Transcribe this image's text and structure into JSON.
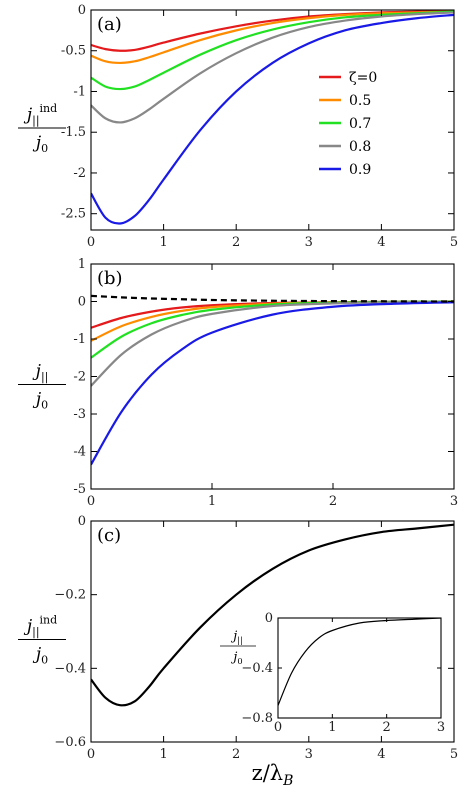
{
  "chart_data": [
    {
      "type": "line",
      "panel_label": "(a)",
      "ylabel": {
        "main": "j",
        "sub": "||",
        "sup": "ind",
        "den": "j",
        "den_sub": "0"
      },
      "xlim": [
        0,
        5
      ],
      "ylim": [
        -2.7,
        0
      ],
      "xticks": [
        "0",
        "1",
        "2",
        "3",
        "4",
        "5"
      ],
      "yticks": [
        {
          "v": 0,
          "label": "0"
        },
        {
          "v": -0.5,
          "label": "-0.5"
        },
        {
          "v": -1,
          "label": "-1"
        },
        {
          "v": -1.5,
          "label": "-1.5"
        },
        {
          "v": -2,
          "label": "-2"
        },
        {
          "v": -2.5,
          "label": "-2.5"
        }
      ],
      "legend": {
        "title_prefix": "ζ=",
        "entries": [
          "0",
          "0.5",
          "0.7",
          "0.8",
          "0.9"
        ]
      },
      "series": [
        {
          "name": "ζ=0",
          "color": "#e41a1c",
          "x": [
            0,
            0.2,
            0.4,
            0.6,
            0.8,
            1,
            1.5,
            2,
            2.5,
            3,
            3.5,
            4,
            4.5,
            5
          ],
          "y": [
            -0.43,
            -0.48,
            -0.5,
            -0.49,
            -0.45,
            -0.4,
            -0.29,
            -0.2,
            -0.13,
            -0.08,
            -0.05,
            -0.03,
            -0.02,
            -0.01
          ]
        },
        {
          "name": "0.5",
          "color": "#ff8c00",
          "x": [
            0,
            0.2,
            0.4,
            0.6,
            0.8,
            1,
            1.5,
            2,
            2.5,
            3,
            3.5,
            4,
            4.5,
            5
          ],
          "y": [
            -0.56,
            -0.63,
            -0.65,
            -0.63,
            -0.58,
            -0.52,
            -0.37,
            -0.25,
            -0.16,
            -0.1,
            -0.06,
            -0.04,
            -0.03,
            -0.02
          ]
        },
        {
          "name": "0.7",
          "color": "#22e022",
          "x": [
            0,
            0.2,
            0.4,
            0.6,
            0.8,
            1,
            1.5,
            2,
            2.5,
            3,
            3.5,
            4,
            4.5,
            5
          ],
          "y": [
            -0.83,
            -0.94,
            -0.97,
            -0.94,
            -0.86,
            -0.77,
            -0.55,
            -0.37,
            -0.24,
            -0.15,
            -0.09,
            -0.06,
            -0.04,
            -0.02
          ]
        },
        {
          "name": "0.8",
          "color": "#888888",
          "x": [
            0,
            0.2,
            0.4,
            0.6,
            0.8,
            1,
            1.5,
            2,
            2.5,
            3,
            3.5,
            4,
            4.5,
            5
          ],
          "y": [
            -1.17,
            -1.33,
            -1.38,
            -1.33,
            -1.22,
            -1.09,
            -0.78,
            -0.53,
            -0.34,
            -0.21,
            -0.13,
            -0.08,
            -0.05,
            -0.03
          ]
        },
        {
          "name": "0.9",
          "color": "#1a1ae6",
          "x": [
            0,
            0.2,
            0.4,
            0.6,
            0.8,
            1,
            1.5,
            2,
            2.5,
            3,
            3.5,
            4,
            4.5,
            5
          ],
          "y": [
            -2.25,
            -2.55,
            -2.62,
            -2.53,
            -2.33,
            -2.08,
            -1.48,
            -1.0,
            -0.65,
            -0.41,
            -0.25,
            -0.16,
            -0.1,
            -0.06
          ]
        }
      ]
    },
    {
      "type": "line",
      "panel_label": "(b)",
      "ylabel": {
        "main": "j",
        "sub": "||",
        "den": "j",
        "den_sub": "0"
      },
      "xlim": [
        0,
        3
      ],
      "ylim": [
        -5,
        1
      ],
      "xticks": [
        "0",
        "1",
        "2",
        "3"
      ],
      "yticks": [
        {
          "v": 1,
          "label": "1"
        },
        {
          "v": 0,
          "label": "0"
        },
        {
          "v": -1,
          "label": "-1"
        },
        {
          "v": -2,
          "label": "-2"
        },
        {
          "v": -3,
          "label": "-3"
        },
        {
          "v": -4,
          "label": "-4"
        },
        {
          "v": -5,
          "label": "-5"
        }
      ],
      "series": [
        {
          "color": "#e41a1c",
          "x": [
            0,
            0.25,
            0.5,
            0.75,
            1,
            1.5,
            2,
            2.5,
            3
          ],
          "y": [
            -0.7,
            -0.44,
            -0.27,
            -0.16,
            -0.1,
            -0.04,
            -0.02,
            -0.01,
            0
          ]
        },
        {
          "color": "#ff8c00",
          "x": [
            0,
            0.25,
            0.5,
            0.75,
            1,
            1.5,
            2,
            2.5,
            3
          ],
          "y": [
            -1.05,
            -0.66,
            -0.41,
            -0.25,
            -0.15,
            -0.06,
            -0.02,
            -0.01,
            0
          ]
        },
        {
          "color": "#22e022",
          "x": [
            0,
            0.25,
            0.5,
            0.75,
            1,
            1.5,
            2,
            2.5,
            3
          ],
          "y": [
            -1.5,
            -0.94,
            -0.58,
            -0.36,
            -0.22,
            -0.08,
            -0.03,
            -0.01,
            0
          ]
        },
        {
          "color": "#888888",
          "x": [
            0,
            0.25,
            0.5,
            0.75,
            1,
            1.5,
            2,
            2.5,
            3
          ],
          "y": [
            -2.25,
            -1.42,
            -0.88,
            -0.54,
            -0.33,
            -0.12,
            -0.05,
            -0.02,
            -0.01
          ]
        },
        {
          "color": "#1a1ae6",
          "x": [
            0,
            0.25,
            0.5,
            0.75,
            1,
            1.5,
            2,
            2.5,
            3
          ],
          "y": [
            -4.35,
            -2.95,
            -1.95,
            -1.28,
            -0.83,
            -0.35,
            -0.14,
            -0.06,
            -0.02
          ]
        },
        {
          "color": "#000000",
          "dashed": true,
          "x": [
            0,
            0.25,
            0.5,
            0.75,
            1,
            1.5,
            2,
            2.5,
            3
          ],
          "y": [
            0.15,
            0.11,
            0.08,
            0.06,
            0.04,
            0.02,
            0.01,
            0.005,
            0
          ]
        }
      ]
    },
    {
      "type": "line",
      "panel_label": "(c)",
      "ylabel": {
        "main": "j",
        "sub": "||",
        "sup": "ind",
        "den": "j",
        "den_sub": "0"
      },
      "xlabel": {
        "main": "z/λ",
        "sub": "B"
      },
      "xlim": [
        0,
        5
      ],
      "ylim": [
        -0.6,
        0
      ],
      "xticks": [
        "0",
        "1",
        "2",
        "3",
        "4",
        "5"
      ],
      "yticks": [
        {
          "v": 0,
          "label": "0"
        },
        {
          "v": -0.2,
          "label": "−0.2"
        },
        {
          "v": -0.4,
          "label": "−0.4"
        },
        {
          "v": -0.6,
          "label": "−0.6"
        }
      ],
      "series": [
        {
          "color": "#000000",
          "x": [
            0,
            0.2,
            0.4,
            0.6,
            0.8,
            1,
            1.5,
            2,
            2.5,
            3,
            3.5,
            4,
            4.5,
            5
          ],
          "y": [
            -0.43,
            -0.48,
            -0.5,
            -0.49,
            -0.45,
            -0.4,
            -0.29,
            -0.2,
            -0.13,
            -0.08,
            -0.05,
            -0.03,
            -0.02,
            -0.01
          ]
        }
      ],
      "inset": {
        "type": "line",
        "ylabel": {
          "main": "j",
          "sub": "||",
          "den": "j",
          "den_sub": "0"
        },
        "xlim": [
          0,
          3
        ],
        "ylim": [
          -0.8,
          0
        ],
        "xticks": [
          "0",
          "1",
          "2",
          "3"
        ],
        "yticks": [
          {
            "v": 0,
            "label": "0"
          },
          {
            "v": -0.4,
            "label": "−0.4"
          },
          {
            "v": -0.8,
            "label": "−0.8"
          }
        ],
        "series": [
          {
            "color": "#000000",
            "x": [
              0,
              0.25,
              0.5,
              0.75,
              1,
              1.5,
              2,
              2.5,
              3
            ],
            "y": [
              -0.7,
              -0.44,
              -0.27,
              -0.16,
              -0.1,
              -0.04,
              -0.02,
              -0.01,
              0
            ]
          }
        ]
      }
    }
  ]
}
